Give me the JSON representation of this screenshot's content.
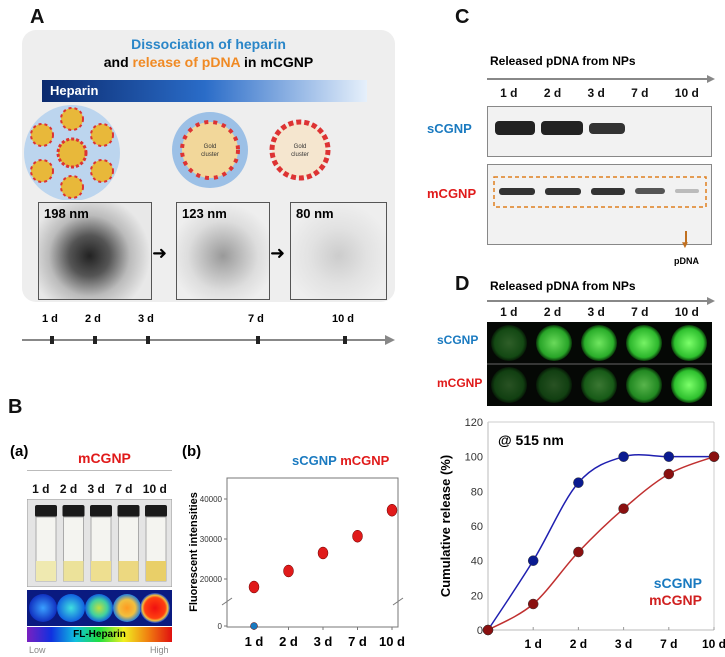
{
  "panels": {
    "a": "A",
    "b": "B",
    "c": "C",
    "d": "D"
  },
  "panelA": {
    "title_line1": "Dissociation of heparin",
    "title_and": "and",
    "title_release": "release of pDNA",
    "title_in": "in mCGNP",
    "heparin_bar": "Heparin",
    "gold_cluster": "Gold cluster",
    "tem_sizes": [
      "198 nm",
      "123 nm",
      "80 nm"
    ],
    "timeline": [
      "1 d",
      "2 d",
      "3 d",
      "7 d",
      "10 d"
    ]
  },
  "panelB": {
    "sub_a": "(a)",
    "sub_b": "(b)",
    "sample": "mCGNP",
    "lanes": [
      "1 d",
      "2 d",
      "3 d",
      "7 d",
      "10 d"
    ],
    "colorbar_label": "FL-Heparin",
    "colorbar_low": "Low",
    "colorbar_high": "High",
    "legend": [
      "sCGNP",
      "mCGNP"
    ]
  },
  "panelC": {
    "header": "Released pDNA from NPs",
    "lanes": [
      "1 d",
      "2 d",
      "3 d",
      "7 d",
      "10 d"
    ],
    "rows": [
      "sCGNP",
      "mCGNP"
    ],
    "arrow_label": "pDNA"
  },
  "panelD": {
    "header": "Released pDNA from NPs",
    "lanes": [
      "1 d",
      "2 d",
      "3 d",
      "7 d",
      "10 d"
    ],
    "rows": [
      "sCGNP",
      "mCGNP"
    ]
  },
  "colors": {
    "sCGNP": "#1a7ac0",
    "mCGNP": "#e01a1a",
    "sCGNP_curve": "#1f1fb0",
    "mCGNP_curve": "#c03030"
  },
  "chart_data": [
    {
      "type": "scatter",
      "panel": "B(b)",
      "ylabel": "Fluorescent intensities",
      "categories": [
        "1 d",
        "2 d",
        "3 d",
        "7 d",
        "10 d"
      ],
      "yticks": [
        0,
        20000,
        30000,
        40000
      ],
      "axis_break": true,
      "ylim": [
        0,
        45000
      ],
      "series": [
        {
          "name": "sCGNP",
          "values": [
            0,
            null,
            null,
            null,
            null
          ]
        },
        {
          "name": "mCGNP",
          "values": [
            18000,
            22000,
            26500,
            30700,
            37200
          ]
        }
      ]
    },
    {
      "type": "line",
      "panel": "D",
      "annotation": "@ 515 nm",
      "ylabel": "Cumulative release (%)",
      "categories": [
        "",
        "1 d",
        "2 d",
        "3 d",
        "7 d",
        "10 d"
      ],
      "ylim": [
        0,
        120
      ],
      "yticks": [
        0,
        20,
        40,
        60,
        80,
        100,
        120
      ],
      "legend": "bottom-right",
      "series": [
        {
          "name": "sCGNP",
          "values": [
            0,
            40,
            85,
            100,
            100,
            100
          ]
        },
        {
          "name": "mCGNP",
          "values": [
            0,
            15,
            45,
            70,
            90,
            100
          ]
        }
      ]
    }
  ]
}
